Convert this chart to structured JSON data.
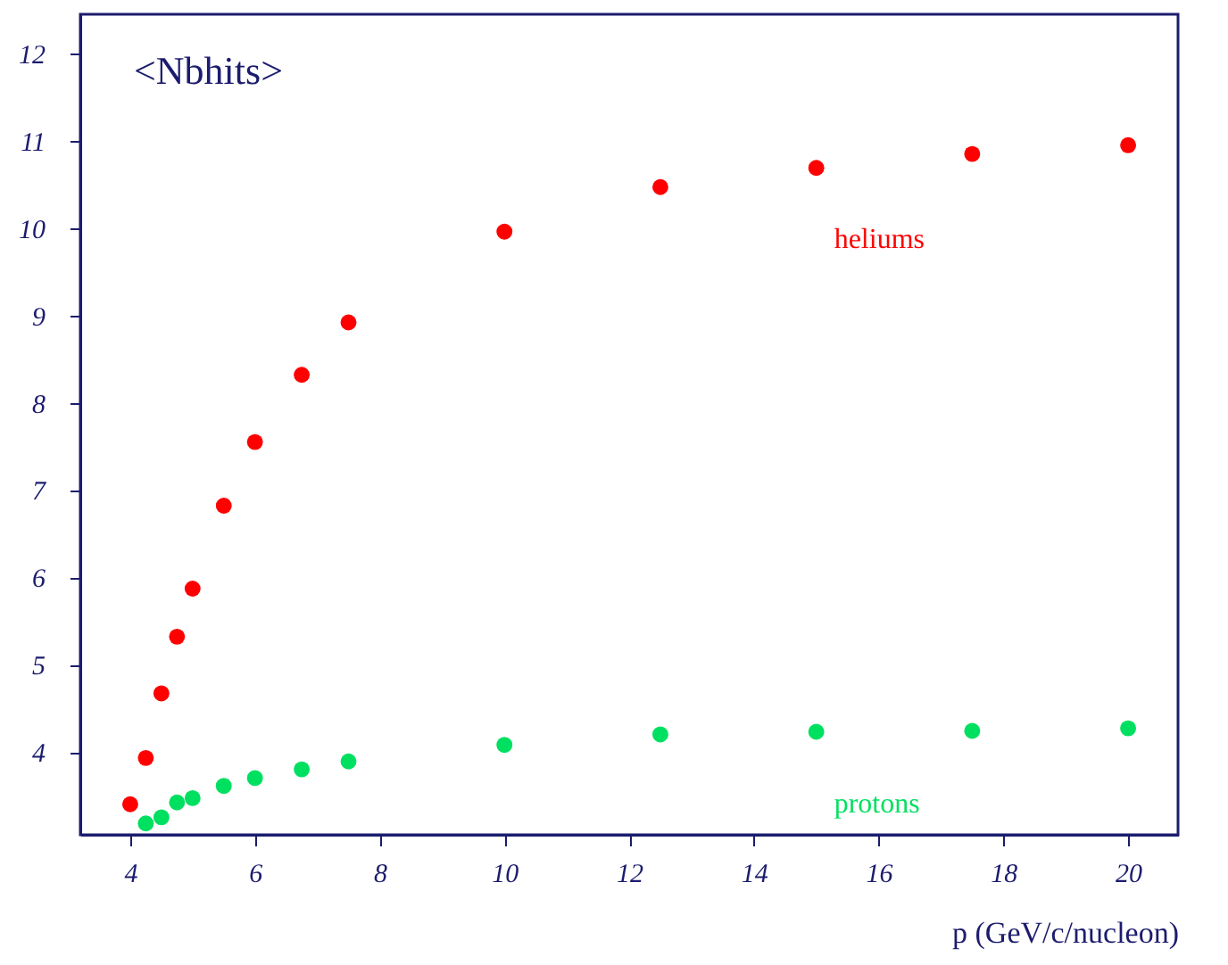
{
  "chart_data": {
    "type": "scatter",
    "title": "<Nbhits>",
    "xlabel": "p (GeV/c/nucleon)",
    "x": [
      4,
      4.25,
      4.5,
      4.75,
      5,
      5.5,
      6,
      6.75,
      7.5,
      10,
      12.5,
      15,
      17.5,
      20
    ],
    "series": [
      {
        "name": "heliums",
        "color": "#ff0000",
        "values": [
          3.4,
          3.93,
          4.67,
          5.32,
          5.87,
          6.82,
          7.55,
          8.32,
          8.92,
          9.96,
          10.47,
          10.69,
          10.85,
          10.95
        ]
      },
      {
        "name": "protons",
        "color": "#00e060",
        "values": [
          null,
          3.18,
          3.25,
          3.42,
          3.47,
          3.61,
          3.7,
          3.8,
          3.89,
          4.08,
          4.2,
          4.23,
          4.24,
          4.27
        ]
      }
    ],
    "xlim": [
      3.2,
      20.8
    ],
    "xticks": [
      4,
      6,
      8,
      10,
      12,
      14,
      16,
      18,
      20
    ],
    "ylim": [
      3.05,
      12.45
    ],
    "yticks": [
      4,
      5,
      6,
      7,
      8,
      9,
      10,
      11,
      12
    ],
    "grid": false,
    "legend": false,
    "marker": "circle"
  }
}
